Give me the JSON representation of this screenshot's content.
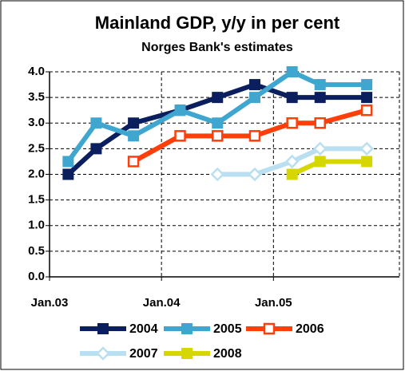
{
  "chart_data": {
    "type": "line",
    "title": "Mainland GDP, y/y in per cent",
    "subtitle": "Norges Bank's estimates",
    "xlim": [
      0,
      37.5
    ],
    "xticks": [
      {
        "value": 0,
        "label": "Jan.03"
      },
      {
        "value": 12,
        "label": "Jan.04"
      },
      {
        "value": 24,
        "label": "Jan.05"
      }
    ],
    "ylim": [
      0,
      4
    ],
    "yticks": [
      {
        "value": 0,
        "label": "0.0"
      },
      {
        "value": 0.5,
        "label": "0.5"
      },
      {
        "value": 1,
        "label": "1.0"
      },
      {
        "value": 1.5,
        "label": "1.5"
      },
      {
        "value": 2,
        "label": "2.0"
      },
      {
        "value": 2.5,
        "label": "2.5"
      },
      {
        "value": 3,
        "label": "3.0"
      },
      {
        "value": 3.5,
        "label": "3.5"
      },
      {
        "value": 4,
        "label": "4.0"
      }
    ],
    "grid": true,
    "legend": "bottom",
    "series": [
      {
        "name": "2004",
        "color": "#0b1f5e",
        "marker": "square",
        "x": [
          2,
          5,
          9,
          14,
          18,
          22,
          26,
          29,
          34
        ],
        "values": [
          2.0,
          2.5,
          3.0,
          3.25,
          3.5,
          3.75,
          3.5,
          3.5,
          3.5
        ]
      },
      {
        "name": "2005",
        "color": "#3ea6cf",
        "marker": "square",
        "x": [
          2,
          5,
          9,
          14,
          18,
          22,
          26,
          29,
          34
        ],
        "values": [
          2.25,
          3.0,
          2.75,
          3.25,
          3.0,
          3.5,
          4.0,
          3.75,
          3.75
        ]
      },
      {
        "name": "2006",
        "color": "#ff3f0a",
        "marker": "open-square",
        "x": [
          9,
          14,
          18,
          22,
          26,
          29,
          34
        ],
        "values": [
          2.25,
          2.75,
          2.75,
          2.75,
          3.0,
          3.0,
          3.25
        ]
      },
      {
        "name": "2007",
        "color": "#b9dff0",
        "marker": "open-diamond",
        "x": [
          18,
          22,
          26,
          29,
          34
        ],
        "values": [
          2.0,
          2.0,
          2.25,
          2.5,
          2.5
        ]
      },
      {
        "name": "2008",
        "color": "#d6d600",
        "marker": "square",
        "x": [
          26,
          29,
          34
        ],
        "values": [
          2.0,
          2.25,
          2.25
        ]
      }
    ]
  }
}
